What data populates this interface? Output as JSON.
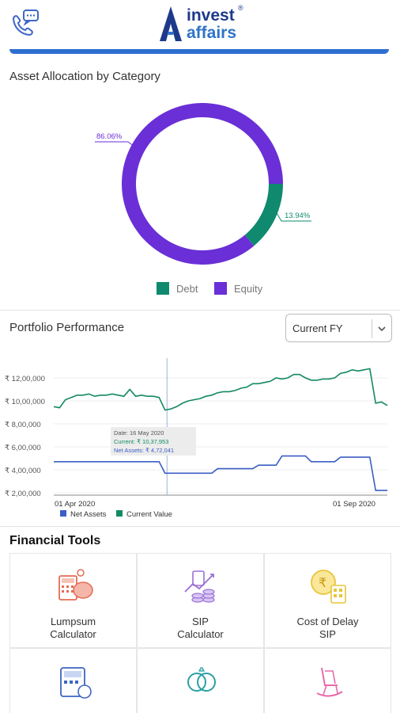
{
  "app": {
    "logo_line1": "invest",
    "logo_line2": "affairs",
    "logo_reg": "®"
  },
  "icons": {
    "header_left": "call-chat-icon",
    "dropdown": "chevron-down-icon"
  },
  "colors": {
    "debt": "#0f8a6e",
    "equity": "#6a2fd6",
    "net_assets": "#3b5fc4",
    "current_value": "#138a5f",
    "brand_blue": "#2d6fd0",
    "tool_icon_red": "#e56b55",
    "tool_icon_purple": "#9b6fd6",
    "tool_icon_yellow": "#e8c53a",
    "tool_icon_teal": "#2aa0a3",
    "tool_icon_pink": "#e86aa8",
    "tool_icon_blue": "#3e66c2"
  },
  "asset_allocation": {
    "title": "Asset Allocation by Category",
    "legend": [
      {
        "label": "Debt"
      },
      {
        "label": "Equity"
      }
    ],
    "label_equity": "86.06%",
    "label_debt": "13.94%"
  },
  "portfolio": {
    "title": "Portfolio Performance",
    "period_selected": "Current FY",
    "y_ticks": [
      "₹ 12,00,000",
      "₹ 10,00,000",
      "₹ 8,00,000",
      "₹ 6,00,000",
      "₹ 4,00,000",
      "₹ 2,00,000"
    ],
    "x_start": "01 Apr 2020",
    "x_end": "01 Sep 2020",
    "legend_net_assets": "Net Assets",
    "legend_current_value": "Current Value",
    "tooltip": {
      "date": "Date: 16 May 2020",
      "current": "Current: ₹ 10,37,953",
      "net_assets": "Net Assets: ₹ 4,72,041"
    }
  },
  "chart_data": [
    {
      "type": "pie",
      "title": "Asset Allocation by Category",
      "categories": [
        "Equity",
        "Debt"
      ],
      "values": [
        86.06,
        13.94
      ],
      "legend": [
        "Debt",
        "Equity"
      ]
    },
    {
      "type": "line",
      "title": "Portfolio Performance",
      "x_labels": [
        "01 Apr 2020",
        "01 Sep 2020"
      ],
      "ylim": [
        200000,
        1300000
      ],
      "series": [
        {
          "name": "Current Value",
          "values": [
            950000,
            940000,
            1010000,
            1030000,
            1050000,
            1050000,
            1060000,
            1040000,
            1050000,
            1050000,
            1060000,
            1050000,
            1040000,
            1100000,
            1040000,
            1050000,
            1040000,
            1040000,
            1030000,
            920000,
            930000,
            950000,
            980000,
            1000000,
            1010000,
            1020000,
            1040000,
            1050000,
            1070000,
            1080000,
            1080000,
            1090000,
            1110000,
            1120000,
            1150000,
            1150000,
            1160000,
            1170000,
            1200000,
            1190000,
            1200000,
            1230000,
            1230000,
            1200000,
            1180000,
            1180000,
            1190000,
            1190000,
            1200000,
            1240000,
            1250000,
            1270000,
            1260000,
            1270000,
            1280000,
            980000,
            990000,
            960000
          ]
        },
        {
          "name": "Net Assets",
          "values": [
            470000,
            470000,
            470000,
            470000,
            470000,
            470000,
            470000,
            470000,
            470000,
            470000,
            470000,
            470000,
            470000,
            470000,
            470000,
            470000,
            470000,
            470000,
            470000,
            370000,
            370000,
            370000,
            370000,
            370000,
            370000,
            370000,
            370000,
            370000,
            410000,
            410000,
            410000,
            410000,
            410000,
            410000,
            410000,
            440000,
            440000,
            440000,
            440000,
            520000,
            520000,
            520000,
            520000,
            520000,
            470000,
            470000,
            470000,
            470000,
            470000,
            510000,
            510000,
            510000,
            510000,
            510000,
            510000,
            220000,
            220000,
            220000
          ]
        }
      ]
    }
  ],
  "financial_tools": {
    "title": "Financial Tools",
    "items": [
      {
        "label": "Lumpsum\nCalculator",
        "icon": "piggy-bank-calculator-icon"
      },
      {
        "label": "SIP\nCalculator",
        "icon": "coins-growth-icon"
      },
      {
        "label": "Cost of Delay\nSIP",
        "icon": "rupee-clock-calculator-icon"
      },
      {
        "label": "",
        "icon": "calculator-rupee-icon"
      },
      {
        "label": "",
        "icon": "rings-icon"
      },
      {
        "label": "",
        "icon": "rocking-chair-icon"
      }
    ]
  }
}
